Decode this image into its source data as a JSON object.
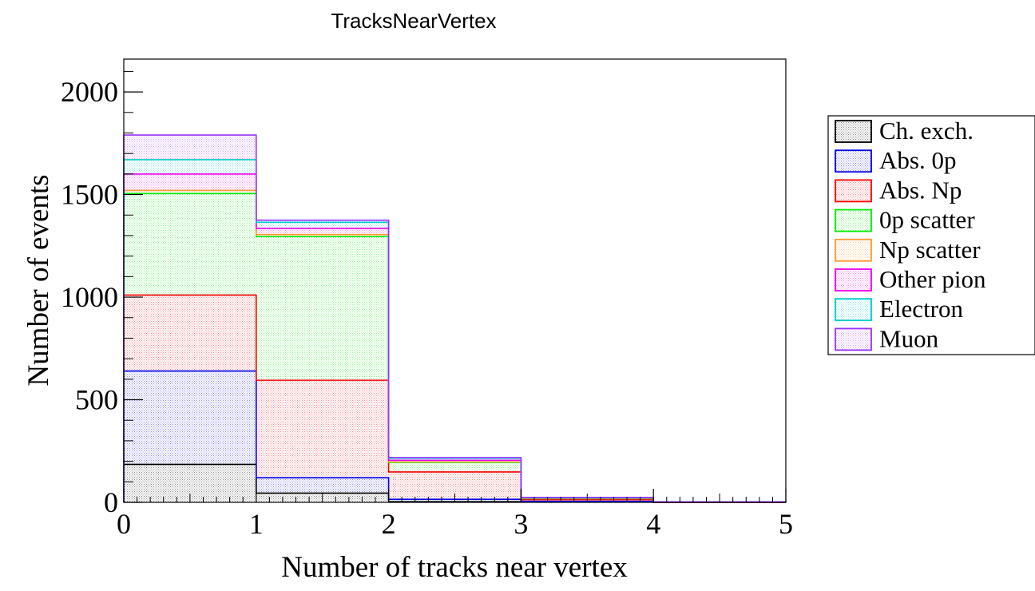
{
  "chart_data": {
    "type": "bar",
    "title": "TracksNearVertex",
    "xlabel": "Number of tracks near vertex",
    "ylabel": "Number of events",
    "xlim": [
      0,
      5
    ],
    "ylim": [
      0,
      2160
    ],
    "x_ticks": [
      "0",
      "1",
      "2",
      "3",
      "4",
      "5"
    ],
    "y_ticks": [
      "0",
      "500",
      "1000",
      "1500",
      "2000"
    ],
    "bin_edges": [
      0,
      1,
      2,
      3,
      4,
      5
    ],
    "stacked": true,
    "legend_position": "right",
    "series": [
      {
        "name": "Ch. exch.",
        "color": "#000000",
        "values": [
          185,
          45,
          3,
          2,
          0
        ]
      },
      {
        "name": "Abs. 0p",
        "color": "#0000ee",
        "values": [
          455,
          75,
          12,
          3,
          0
        ]
      },
      {
        "name": "Abs. Np",
        "color": "#ff0000",
        "values": [
          370,
          475,
          133,
          8,
          0
        ]
      },
      {
        "name": "0p scatter",
        "color": "#00ee00",
        "values": [
          495,
          700,
          47,
          5,
          2
        ]
      },
      {
        "name": "Np scatter",
        "color": "#ff9933",
        "values": [
          15,
          10,
          2,
          2,
          0
        ]
      },
      {
        "name": "Other pion",
        "color": "#ee00ee",
        "values": [
          80,
          30,
          8,
          2,
          0
        ]
      },
      {
        "name": "Electron",
        "color": "#00cccc",
        "values": [
          70,
          30,
          10,
          1,
          0
        ]
      },
      {
        "name": "Muon",
        "color": "#9933ff",
        "values": [
          120,
          10,
          3,
          1,
          0
        ]
      }
    ]
  }
}
